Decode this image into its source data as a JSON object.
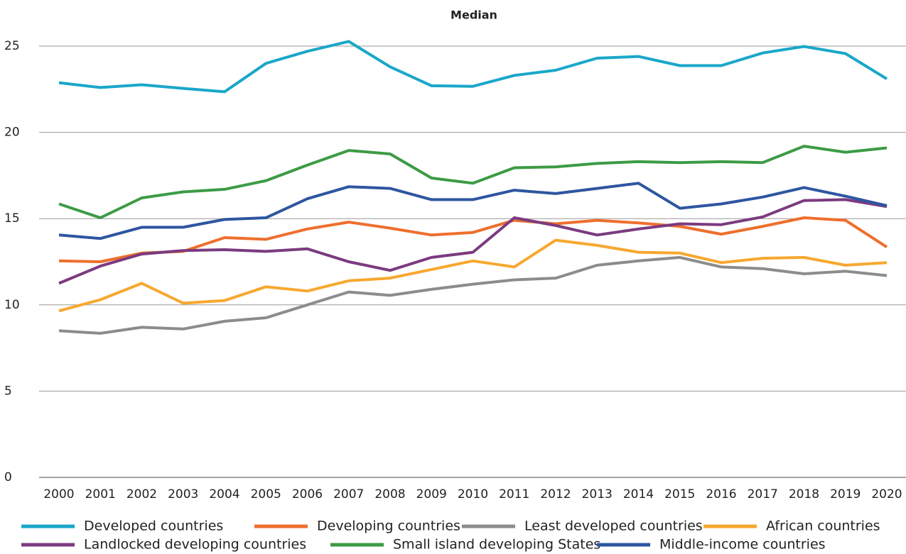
{
  "chart_data": {
    "type": "line",
    "title": "Median",
    "x": [
      2000,
      2001,
      2002,
      2003,
      2004,
      2005,
      2006,
      2007,
      2008,
      2009,
      2010,
      2011,
      2012,
      2013,
      2014,
      2015,
      2016,
      2017,
      2018,
      2019,
      2020
    ],
    "xlim": [
      2000,
      2020
    ],
    "ylim": [
      0,
      25
    ],
    "yticks": [
      0,
      5,
      10,
      15,
      20,
      25
    ],
    "grid": true,
    "series": [
      {
        "name": "Developed countries",
        "color": "#1aa7c9",
        "values": [
          22.88,
          22.6,
          22.76,
          22.55,
          22.35,
          24.0,
          24.7,
          25.27,
          23.8,
          22.7,
          22.67,
          23.3,
          23.6,
          24.3,
          24.4,
          23.87,
          23.87,
          24.6,
          24.98,
          24.57,
          23.1
        ]
      },
      {
        "name": "Developing countries",
        "color": "#ee6f2d",
        "values": [
          12.55,
          12.5,
          13.0,
          13.1,
          13.9,
          13.8,
          14.4,
          14.8,
          14.45,
          14.05,
          14.2,
          14.9,
          14.7,
          14.9,
          14.75,
          14.55,
          14.1,
          14.55,
          15.05,
          14.9,
          13.35
        ]
      },
      {
        "name": "Least developed countries",
        "color": "#8c8c8c",
        "values": [
          8.5,
          8.35,
          8.7,
          8.6,
          9.05,
          9.25,
          10.0,
          10.75,
          10.55,
          10.9,
          11.2,
          11.45,
          11.55,
          12.3,
          12.55,
          12.75,
          12.2,
          12.1,
          11.8,
          11.95,
          11.7
        ]
      },
      {
        "name": "African countries",
        "color": "#f7a830",
        "values": [
          9.65,
          10.3,
          11.25,
          10.1,
          10.25,
          11.05,
          10.8,
          11.4,
          11.55,
          12.05,
          12.55,
          12.2,
          13.75,
          13.45,
          13.05,
          13.0,
          12.45,
          12.7,
          12.75,
          12.3,
          12.45
        ]
      },
      {
        "name": "Landlocked developing countries",
        "color": "#7b3b7f",
        "values": [
          11.25,
          12.25,
          12.95,
          13.15,
          13.2,
          13.1,
          13.25,
          12.5,
          12.0,
          12.75,
          13.05,
          15.05,
          14.6,
          14.05,
          14.4,
          14.7,
          14.65,
          15.1,
          16.05,
          16.1,
          15.7
        ]
      },
      {
        "name": "Small island developing States",
        "color": "#3c9b45",
        "values": [
          15.85,
          15.05,
          16.2,
          16.55,
          16.7,
          17.2,
          18.1,
          18.95,
          18.75,
          17.35,
          17.05,
          17.95,
          18.0,
          18.2,
          18.3,
          18.25,
          18.3,
          18.25,
          19.2,
          18.85,
          19.1
        ]
      },
      {
        "name": "Middle-income countries",
        "color": "#2e56a0",
        "values": [
          14.05,
          13.85,
          14.5,
          14.5,
          14.95,
          15.05,
          16.15,
          16.85,
          16.75,
          16.1,
          16.1,
          16.65,
          16.45,
          16.75,
          17.05,
          15.6,
          15.85,
          16.25,
          16.8,
          16.3,
          15.75
        ]
      }
    ]
  }
}
